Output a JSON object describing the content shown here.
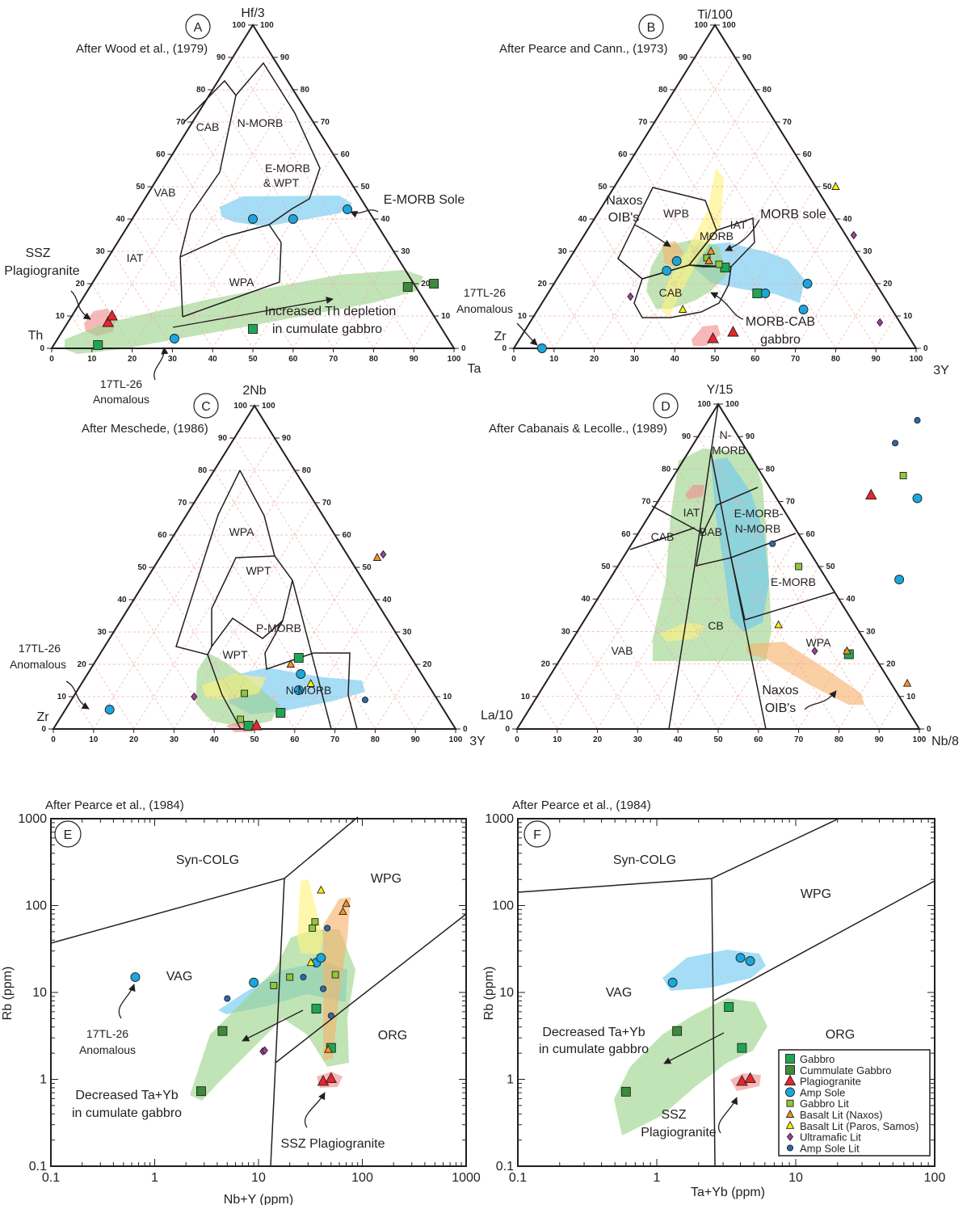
{
  "chart_data": [
    {
      "panel": "A",
      "type": "scatter",
      "subtype": "ternary",
      "reference": "After Wood et al., (1979)",
      "apices": {
        "top": "Hf/3",
        "left": "Th",
        "right": "Ta"
      },
      "fields": [
        "CAB",
        "N-MORB",
        "E-MORB & WPT",
        "VAB",
        "IAT",
        "WPA"
      ],
      "annotations": [
        "E-MORB Sole",
        "SSZ Plagiogranite",
        "Increased Th depletion in cumulate gabbro",
        "17TL-26 Anomalous"
      ],
      "points": [
        {
          "series": "Amp Sole",
          "top": 40,
          "right": 30
        },
        {
          "series": "Amp Sole",
          "top": 40,
          "right": 40
        },
        {
          "series": "Amp Sole",
          "top": 43,
          "right": 52
        },
        {
          "series": "Amp Sole",
          "top": 3,
          "right": 29
        },
        {
          "series": "Plagiogranite",
          "top": 8,
          "right": 10
        },
        {
          "series": "Plagiogranite",
          "top": 10,
          "right": 10
        },
        {
          "series": "Cummulate Gabbro",
          "top": 20,
          "right": 85
        },
        {
          "series": "Cummulate Gabbro",
          "top": 19,
          "right": 79
        },
        {
          "series": "Gabbro",
          "top": 6,
          "right": 47
        },
        {
          "series": "Gabbro",
          "top": 1,
          "right": 11
        }
      ]
    },
    {
      "panel": "B",
      "type": "scatter",
      "subtype": "ternary",
      "reference": "After Pearce and Cann., (1973)",
      "apices": {
        "top": "Ti/100",
        "left": "Zr",
        "right": "3Y"
      },
      "fields": [
        "WPB",
        "IAT",
        "MORB",
        "CAB"
      ],
      "annotations": [
        "Naxos OIB's",
        "MORB sole",
        "MORB-CAB gabbro",
        "17TL-26 Anomalous"
      ],
      "points": [
        {
          "series": "Amp Sole",
          "top": 24,
          "right": 26
        },
        {
          "series": "Amp Sole",
          "top": 27,
          "right": 27
        },
        {
          "series": "Amp Sole",
          "top": 17,
          "right": 54
        },
        {
          "series": "Amp Sole",
          "top": 20,
          "right": 63
        },
        {
          "series": "Amp Sole",
          "top": 12,
          "right": 66
        },
        {
          "series": "Amp Sole",
          "top": 0,
          "right": 7
        },
        {
          "series": "Plagiogranite",
          "top": 3,
          "right": 48
        },
        {
          "series": "Plagiogranite",
          "top": 5,
          "right": 52
        },
        {
          "series": "Gabbro",
          "top": 25,
          "right": 40
        },
        {
          "series": "Gabbro",
          "top": 17,
          "right": 52
        },
        {
          "series": "Gabbro Lit",
          "top": 28,
          "right": 34
        },
        {
          "series": "Gabbro Lit",
          "top": 26,
          "right": 38
        },
        {
          "series": "Basalt Lit (Naxos)",
          "top": 30,
          "right": 34
        },
        {
          "series": "Basalt Lit (Naxos)",
          "top": 27,
          "right": 35
        },
        {
          "series": "Basalt Lit (Paros, Samos)",
          "top": 50,
          "right": 55
        },
        {
          "series": "Basalt Lit (Paros, Samos)",
          "top": 12,
          "right": 36
        },
        {
          "series": "Ultramafic Lit",
          "top": 35,
          "right": 67
        },
        {
          "series": "Ultramafic Lit",
          "top": 8,
          "right": 87
        },
        {
          "series": "Ultramafic Lit",
          "top": 16,
          "right": 21
        }
      ]
    },
    {
      "panel": "C",
      "type": "scatter",
      "subtype": "ternary",
      "reference": "After Meschede, (1986)",
      "apices": {
        "top": "2Nb",
        "left": "Zr",
        "right": "3Y"
      },
      "fields": [
        "WPA",
        "WPT",
        "P-MORB",
        "WPT",
        "N-MORB"
      ],
      "annotations": [
        "17TL-26 Anomalous"
      ],
      "points": [
        {
          "series": "Amp Sole",
          "top": 6,
          "right": 11
        },
        {
          "series": "Amp Sole",
          "top": 17,
          "right": 53
        },
        {
          "series": "Amp Sole",
          "top": 12,
          "right": 55
        },
        {
          "series": "Gabbro",
          "top": 22,
          "right": 50
        },
        {
          "series": "Gabbro",
          "top": 5,
          "right": 54
        },
        {
          "series": "Gabbro",
          "top": 1,
          "right": 48
        },
        {
          "series": "Gabbro Lit",
          "top": 11,
          "right": 42
        },
        {
          "series": "Gabbro Lit",
          "top": 3,
          "right": 45
        },
        {
          "series": "Basalt Lit (Naxos)",
          "top": 53,
          "right": 54
        },
        {
          "series": "Basalt Lit (Naxos)",
          "top": 20,
          "right": 49
        },
        {
          "series": "Basalt Lit (Paros, Samos)",
          "top": 14,
          "right": 57
        },
        {
          "series": "Ultramafic Lit",
          "top": 54,
          "right": 55
        },
        {
          "series": "Ultramafic Lit",
          "top": 10,
          "right": 30
        },
        {
          "series": "Amp Sole Lit",
          "top": 9,
          "right": 73
        },
        {
          "series": "Plagiogranite",
          "top": 1,
          "right": 50
        }
      ]
    },
    {
      "panel": "D",
      "type": "scatter",
      "subtype": "ternary",
      "reference": "After Cabanais & Lecolle., (1989)",
      "apices": {
        "top": "Y/15",
        "left": "La/10",
        "right": "Nb/8"
      },
      "fields": [
        "N-MORB",
        "IAT",
        "E-MORB-N-MORB",
        "CAB",
        "BAB",
        "E-MORB",
        "CB",
        "VAB",
        "WPA"
      ],
      "annotations": [
        "Naxos OIB's"
      ],
      "points": [
        {
          "series": "Amp Sole",
          "top": 71,
          "right": 64
        },
        {
          "series": "Amp Sole",
          "top": 46,
          "right": 72
        },
        {
          "series": "Amp Sole Lit",
          "top": 95,
          "right": 52
        },
        {
          "series": "Amp Sole Lit",
          "top": 88,
          "right": 50
        },
        {
          "series": "Amp Sole Lit",
          "top": 57,
          "right": 35
        },
        {
          "series": "Plagiogranite",
          "top": 72,
          "right": 52
        },
        {
          "series": "Gabbro",
          "top": 23,
          "right": 71
        },
        {
          "series": "Gabbro Lit",
          "top": 78,
          "right": 57
        },
        {
          "series": "Gabbro Lit",
          "top": 50,
          "right": 45
        },
        {
          "series": "Basalt Lit (Naxos)",
          "top": 14,
          "right": 90
        },
        {
          "series": "Basalt Lit (Naxos)",
          "top": 24,
          "right": 70
        },
        {
          "series": "Basalt Lit (Paros, Samos)",
          "top": 32,
          "right": 49
        },
        {
          "series": "Ultramafic Lit",
          "top": 24,
          "right": 62
        }
      ]
    },
    {
      "panel": "E",
      "type": "scatter",
      "reference": "After Pearce et al., (1984)",
      "xlabel": "Nb+Y (ppm)",
      "ylabel": "Rb (ppm)",
      "xscale": "log",
      "yscale": "log",
      "xlim": [
        0.1,
        1000
      ],
      "ylim": [
        0.1,
        1000
      ],
      "xticks": [
        "0.1",
        "1",
        "10",
        "100",
        "1000"
      ],
      "yticks": [
        "0.1",
        "1",
        "10",
        "100",
        "1000"
      ],
      "fields": [
        "Syn-COLG",
        "WPG",
        "VAG",
        "ORG"
      ],
      "annotations": [
        "17TL-26 Anomalous",
        "Decreased Ta+Yb in cumulate gabbro",
        "SSZ Plagiogranite"
      ],
      "points": [
        {
          "series": "Amp Sole",
          "x": 0.65,
          "y": 15
        },
        {
          "series": "Amp Sole",
          "x": 9,
          "y": 13
        },
        {
          "series": "Amp Sole",
          "x": 36,
          "y": 22
        },
        {
          "series": "Amp Sole",
          "x": 40,
          "y": 25
        },
        {
          "series": "Cummulate Gabbro",
          "x": 2.8,
          "y": 0.73
        },
        {
          "series": "Cummulate Gabbro",
          "x": 4.5,
          "y": 3.6
        },
        {
          "series": "Gabbro",
          "x": 36,
          "y": 6.5
        },
        {
          "series": "Gabbro",
          "x": 50,
          "y": 2.3
        },
        {
          "series": "Plagiogranite",
          "x": 42,
          "y": 0.95
        },
        {
          "series": "Plagiogranite",
          "x": 50,
          "y": 1.02
        },
        {
          "series": "Gabbro Lit",
          "x": 35,
          "y": 65
        },
        {
          "series": "Gabbro Lit",
          "x": 33,
          "y": 55
        },
        {
          "series": "Gabbro Lit",
          "x": 20,
          "y": 15
        },
        {
          "series": "Gabbro Lit",
          "x": 14,
          "y": 12
        },
        {
          "series": "Gabbro Lit",
          "x": 55,
          "y": 16
        },
        {
          "series": "Basalt Lit (Paros, Samos)",
          "x": 40,
          "y": 150
        },
        {
          "series": "Basalt Lit (Paros, Samos)",
          "x": 32,
          "y": 22
        },
        {
          "series": "Basalt Lit (Naxos)",
          "x": 70,
          "y": 105
        },
        {
          "series": "Basalt Lit (Naxos)",
          "x": 65,
          "y": 85
        },
        {
          "series": "Basalt Lit (Naxos)",
          "x": 47,
          "y": 2.2
        },
        {
          "series": "Amp Sole Lit",
          "x": 5,
          "y": 8.5
        },
        {
          "series": "Amp Sole Lit",
          "x": 46,
          "y": 55
        },
        {
          "series": "Amp Sole Lit",
          "x": 27,
          "y": 15
        },
        {
          "series": "Amp Sole Lit",
          "x": 42,
          "y": 11
        },
        {
          "series": "Amp Sole Lit",
          "x": 50,
          "y": 5.4
        },
        {
          "series": "Ultramafic Lit",
          "x": 11,
          "y": 2.1
        },
        {
          "series": "Ultramafic Lit",
          "x": 11.5,
          "y": 2.15
        }
      ]
    },
    {
      "panel": "F",
      "type": "scatter",
      "reference": "After Pearce et al., (1984)",
      "xlabel": "Ta+Yb (ppm)",
      "ylabel": "Rb (ppm)",
      "xscale": "log",
      "yscale": "log",
      "xlim": [
        0.1,
        100
      ],
      "ylim": [
        0.1,
        1000
      ],
      "xticks": [
        "0.1",
        "1",
        "10",
        "100"
      ],
      "yticks": [
        "0.1",
        "1",
        "10",
        "100",
        "1000"
      ],
      "fields": [
        "Syn-COLG",
        "WPG",
        "VAG",
        "ORG",
        "SSZ Plagiogranite"
      ],
      "annotations": [
        "Decreased Ta+Yb in cumulate gabbro"
      ],
      "points": [
        {
          "series": "Amp Sole",
          "x": 1.3,
          "y": 13
        },
        {
          "series": "Amp Sole",
          "x": 4,
          "y": 25
        },
        {
          "series": "Amp Sole",
          "x": 4.7,
          "y": 23
        },
        {
          "series": "Cummulate Gabbro",
          "x": 0.6,
          "y": 0.72
        },
        {
          "series": "Cummulate Gabbro",
          "x": 1.4,
          "y": 3.6
        },
        {
          "series": "Gabbro",
          "x": 3.3,
          "y": 6.8
        },
        {
          "series": "Gabbro",
          "x": 4.1,
          "y": 2.3
        },
        {
          "series": "Plagiogranite",
          "x": 4.1,
          "y": 0.95
        },
        {
          "series": "Plagiogranite",
          "x": 4.7,
          "y": 1.02
        }
      ]
    }
  ],
  "panel_labels": {
    "a": "A",
    "b": "B",
    "c": "C",
    "d": "D",
    "e": "E",
    "f": "F"
  },
  "texts": {
    "a": {
      "ref": "After Wood et al., (1979)",
      "top": "Hf/3",
      "left": "Th",
      "right": "Ta",
      "cab": "CAB",
      "nmorb": "N-MORB",
      "emorb1": "E-MORB",
      "emorb2": "& WPT",
      "vab": "VAB",
      "iat": "IAT",
      "wpa": "WPA",
      "sole": "E-MORB Sole",
      "ssz1": "SSZ",
      "ssz2": "Plagiogranite",
      "th1": "Increased Th depletion",
      "th2": "in cumulate gabbro",
      "anom1": "17TL-26",
      "anom2": "Anomalous"
    },
    "b": {
      "ref": "After Pearce and Cann., (1973)",
      "top": "Ti/100",
      "left": "Zr",
      "right": "3Y",
      "naxos1": "Naxos",
      "naxos2": "OIB's",
      "wpb": "WPB",
      "iat": "IAT",
      "morb": "MORB",
      "cab": "CAB",
      "sole": "MORB sole",
      "gab1": "MORB-CAB",
      "gab2": "gabbro",
      "anom1": "17TL-26",
      "anom2": "Anomalous"
    },
    "c": {
      "ref": "After Meschede, (1986)",
      "top": "2Nb",
      "left": "Zr",
      "right": "3Y",
      "wpa": "WPA",
      "wpt": "WPT",
      "pmorb": "P-MORB",
      "wpt2": "WPT",
      "nmorb": "N-MORB",
      "anom1": "17TL-26",
      "anom2": "Anomalous"
    },
    "d": {
      "ref": "After Cabanais & Lecolle., (1989)",
      "top": "Y/15",
      "left": "La/10",
      "right": "Nb/8",
      "n1": "N-",
      "n2": "MORB",
      "iat": "IAT",
      "en1": "E-MORB-",
      "en2": "N-MORB",
      "cab": "CAB",
      "bab": "BAB",
      "emorb": "E-MORB",
      "cb": "CB",
      "vab": "VAB",
      "wpa": "WPA",
      "naxos1": "Naxos",
      "naxos2": "OIB's"
    },
    "e": {
      "ref": "After Pearce et al., (1984)",
      "xlabel": "Nb+Y (ppm)",
      "ylabel": "Rb (ppm)",
      "syn": "Syn-COLG",
      "wpg": "WPG",
      "vag": "VAG",
      "org": "ORG",
      "anom1": "17TL-26",
      "anom2": "Anomalous",
      "dec1": "Decreased Ta+Yb",
      "dec2": "in cumulate gabbro",
      "ssz": "SSZ Plagiogranite"
    },
    "f": {
      "ref": "After Pearce et al., (1984)",
      "xlabel": "Ta+Yb (ppm)",
      "ylabel": "Rb (ppm)",
      "syn": "Syn-COLG",
      "wpg": "WPG",
      "vag": "VAG",
      "org": "ORG",
      "dec1": "Decreased Ta+Yb",
      "dec2": "in cumulate gabbro",
      "ssz1": "SSZ",
      "ssz2": "Plagiogranite"
    }
  },
  "legend": [
    {
      "label": "Gabbro",
      "marker": "square",
      "color": "#1fa654"
    },
    {
      "label": "Cummulate Gabbro",
      "marker": "square",
      "color": "#3c8a3a"
    },
    {
      "label": "Plagiogranite",
      "marker": "triangle",
      "color": "#e8262c"
    },
    {
      "label": "Amp Sole",
      "marker": "circle",
      "color": "#1aa7dd"
    },
    {
      "label": "Gabbro Lit",
      "marker": "square-small",
      "color": "#8dc63f"
    },
    {
      "label": "Basalt Lit (Naxos)",
      "marker": "triangle-small",
      "color": "#f7941d"
    },
    {
      "label": "Basalt Lit (Paros, Samos)",
      "marker": "triangle-small",
      "color": "#fff200"
    },
    {
      "label": "Ultramafic Lit",
      "marker": "diamond",
      "color": "#9e3fa0"
    },
    {
      "label": "Amp Sole Lit",
      "marker": "circle-small",
      "color": "#2b6aad"
    }
  ]
}
